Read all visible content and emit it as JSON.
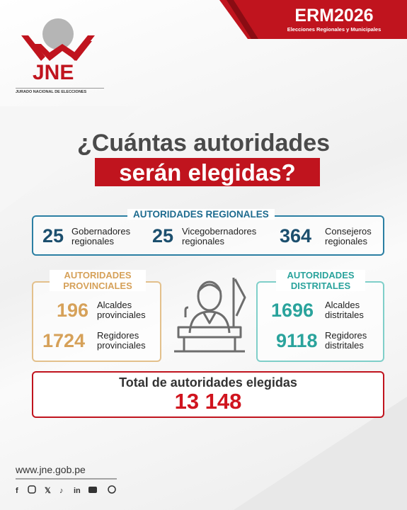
{
  "header": {
    "event": "ERM2026",
    "event_subtitle": "Elecciones Regionales y Municipales"
  },
  "logo": {
    "name": "JNE",
    "full_name": "JURADO NACIONAL DE ELECCIONES"
  },
  "title": {
    "line1": "¿Cuántas autoridades",
    "line2": "serán elegidas?"
  },
  "regional": {
    "label": "AUTORIDADES REGIONALES",
    "items": [
      {
        "number": "25",
        "label_line1": "Gobernadores",
        "label_line2": "regionales"
      },
      {
        "number": "25",
        "label_line1": "Vicegobernadores",
        "label_line2": "regionales"
      },
      {
        "number": "364",
        "label_line1": "Consejeros",
        "label_line2": "regionales"
      }
    ]
  },
  "provincial": {
    "label_line1": "AUTORIDADES",
    "label_line2": "PROVINCIALES",
    "items": [
      {
        "number": "196",
        "label_line1": "Alcaldes",
        "label_line2": "provinciales"
      },
      {
        "number": "1724",
        "label_line1": "Regidores",
        "label_line2": "provinciales"
      }
    ]
  },
  "district": {
    "label_line1": "AUTORIDADES",
    "label_line2": "DISTRITALES",
    "items": [
      {
        "number": "1696",
        "label_line1": "Alcaldes",
        "label_line2": "distritales"
      },
      {
        "number": "9118",
        "label_line1": "Regidores",
        "label_line2": "distritales"
      }
    ]
  },
  "total": {
    "label": "Total de autoridades elegidas",
    "value": "13 148"
  },
  "footer": {
    "website": "www.jne.gob.pe"
  }
}
